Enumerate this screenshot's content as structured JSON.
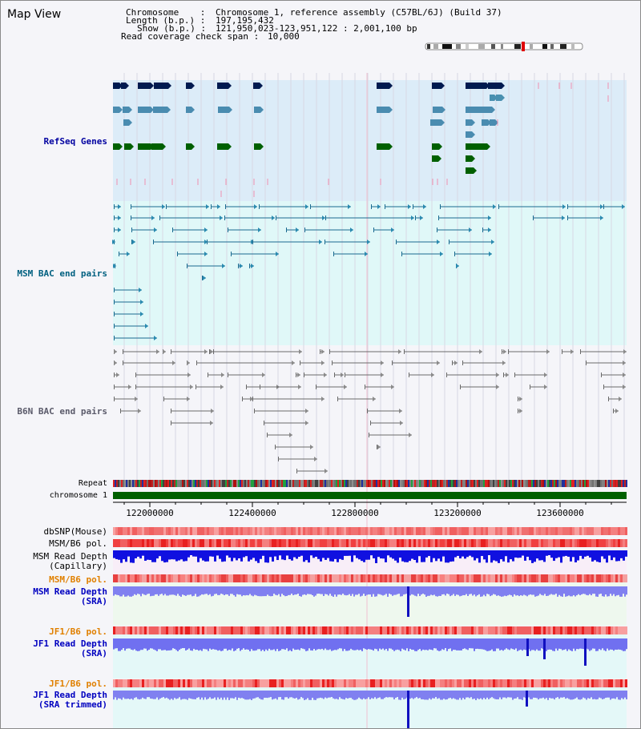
{
  "map_title": "Map View",
  "info": {
    "chromosome_key": "Chromosome    :",
    "chromosome_val": "Chromosome 1, reference assembly (C57BL/6J) (Build 37)",
    "length_key": "Length (b.p.) :",
    "length_val": "197,195,432",
    "show_key": "Show (b.p.) :",
    "show_val": "121,950,023-123,951,122 : 2,001,100 bp",
    "coverage_key": "Read coverage check span :",
    "coverage_val": "10,000"
  },
  "tracks": {
    "refseq": "RefSeq Genes",
    "msm_bac": "MSM BAC end pairs",
    "b6n_bac": "B6N BAC end pairs",
    "repeat": "Repeat",
    "chromosome": "chromosome 1",
    "dbsnp": "dbSNP(Mouse)",
    "msm_b6_pol_1": "MSM/B6 pol.",
    "msm_read_depth_cap_1": "MSM Read Depth",
    "msm_read_depth_cap_2": "(Capillary)",
    "msm_b6_pol_2": "MSM/B6 pol.",
    "msm_read_depth_sra_1": "MSM Read Depth",
    "msm_read_depth_sra_2": "(SRA)",
    "jf1_b6_pol_1": "JF1/B6 pol.",
    "jf1_read_depth_sra_1": "JF1 Read Depth",
    "jf1_read_depth_sra_2": "(SRA)",
    "jf1_b6_pol_2": "JF1/B6 pol.",
    "jf1_read_depth_trim_1": "JF1 Read Depth",
    "jf1_read_depth_trim_2": "(SRA trimmed)"
  },
  "axis_ticks": [
    "122000000",
    "122400000",
    "122800000",
    "123200000",
    "123600000"
  ],
  "colors": {
    "refseq_bg": "#dcecf8",
    "msm_bg": "#e0f8f8",
    "b6n_bg": "#f5f5f9",
    "msm_label": "#006080",
    "refseq_label": "#0000a0",
    "orange_label": "#e08000",
    "blue_label": "#0000c0",
    "chrom_green": "#006000"
  }
}
